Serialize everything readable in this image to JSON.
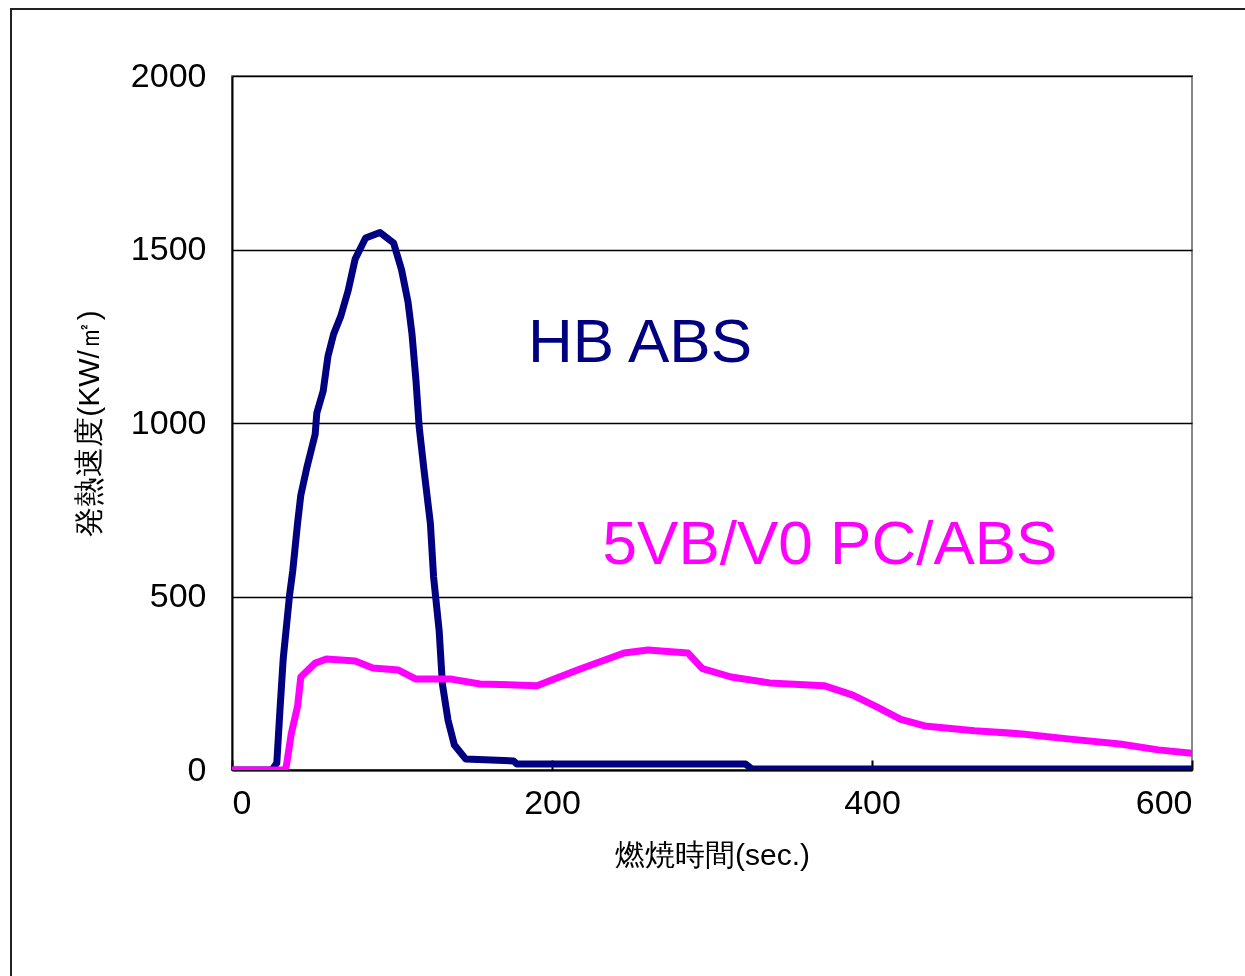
{
  "chart_data": {
    "type": "line",
    "xlabel": "燃焼時間(sec.)",
    "ylabel": "発熱速度(KW/㎡)",
    "xlim": [
      0,
      600
    ],
    "xticks": [
      0,
      200,
      400,
      600
    ],
    "ylim": [
      0,
      2000
    ],
    "yticks": [
      0,
      500,
      1000,
      1500,
      2000
    ],
    "grid": "y",
    "legend": false,
    "marker": "none",
    "line_style": "solid",
    "series": [
      {
        "name": "HB ABS",
        "color": "#000080",
        "x": [
          0,
          25,
          28,
          30,
          32,
          36,
          38,
          41,
          43,
          47,
          52,
          53,
          57,
          60,
          63.5,
          68,
          72.5,
          77,
          83.5,
          92.5,
          101,
          106,
          110,
          112.5,
          115,
          117,
          120,
          124,
          126,
          129.5,
          131.5,
          135,
          139,
          146,
          176,
          178,
          321,
          325,
          600
        ],
        "values": [
          0,
          0,
          20,
          175,
          320,
          505,
          575,
          712,
          792,
          876,
          968,
          1029,
          1092,
          1193,
          1256,
          1308,
          1380,
          1473,
          1533,
          1549,
          1519,
          1441,
          1349,
          1256,
          1121,
          988,
          865,
          710,
          556,
          400,
          248,
          144,
          72,
          32,
          26,
          17,
          17,
          3,
          3
        ]
      },
      {
        "name": "5VB/V0 PC/ABS",
        "color": "#ff00ff",
        "x": [
          0,
          33,
          34,
          37,
          41,
          43,
          52,
          59,
          77,
          88,
          104,
          115,
          137,
          155,
          190.6,
          203,
          218,
          245,
          260,
          285,
          294,
          312,
          336,
          370,
          388,
          403,
          418,
          433,
          464,
          494,
          524,
          555,
          579,
          600
        ],
        "values": [
          0,
          0,
          12,
          104,
          184,
          268,
          308,
          320,
          314,
          294,
          288,
          262,
          262,
          248,
          243,
          265,
          292,
          337,
          346,
          337,
          292,
          268,
          251,
          243,
          216,
          182,
          146,
          127,
          113,
          104,
          89,
          75,
          58,
          48
        ]
      }
    ]
  }
}
